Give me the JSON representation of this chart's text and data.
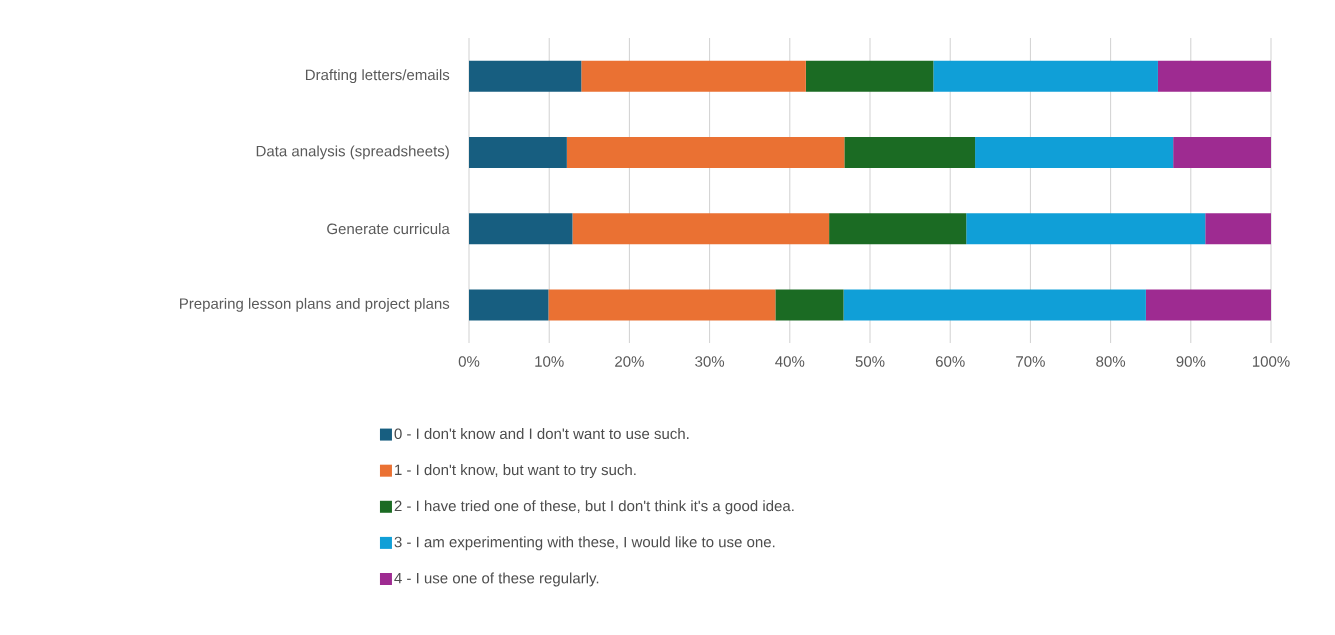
{
  "chart_data": {
    "type": "bar",
    "orientation": "horizontal",
    "stacked": true,
    "categories": [
      "Drafting letters/emails",
      "Data analysis (spreadsheets)",
      "Generate curricula",
      "Preparing lesson plans and project plans"
    ],
    "series": [
      {
        "name": "0 - I don't know and I don't want to use such.",
        "color": "#175e80",
        "values": [
          14.0,
          12.2,
          12.9,
          9.9
        ]
      },
      {
        "name": "1 - I don't know, but want to try such.",
        "color": "#ea7133",
        "values": [
          28.0,
          34.6,
          32.0,
          28.3
        ]
      },
      {
        "name": "2 - I have tried one of these, but I don't think it's a good idea.",
        "color": "#1b6b23",
        "values": [
          15.9,
          16.3,
          17.1,
          8.5
        ]
      },
      {
        "name": "3 - I am experimenting with these, I would like to use one.",
        "color": "#109fd7",
        "values": [
          28.0,
          24.7,
          29.8,
          37.7
        ]
      },
      {
        "name": "4 - I use one of these regularly.",
        "color": "#9e2b91",
        "values": [
          14.1,
          12.2,
          8.2,
          15.6
        ]
      }
    ],
    "xlim": [
      0,
      100
    ],
    "xticks": [
      {
        "value": 0,
        "label": "0%"
      },
      {
        "value": 10,
        "label": "10%"
      },
      {
        "value": 20,
        "label": "20%"
      },
      {
        "value": 30,
        "label": "30%"
      },
      {
        "value": 40,
        "label": "40%"
      },
      {
        "value": 50,
        "label": "50%"
      },
      {
        "value": 60,
        "label": "60%"
      },
      {
        "value": 70,
        "label": "70%"
      },
      {
        "value": 80,
        "label": "80%"
      },
      {
        "value": 90,
        "label": "90%"
      },
      {
        "value": 100,
        "label": "100%"
      }
    ],
    "grid": "x",
    "legend": "bottom"
  }
}
